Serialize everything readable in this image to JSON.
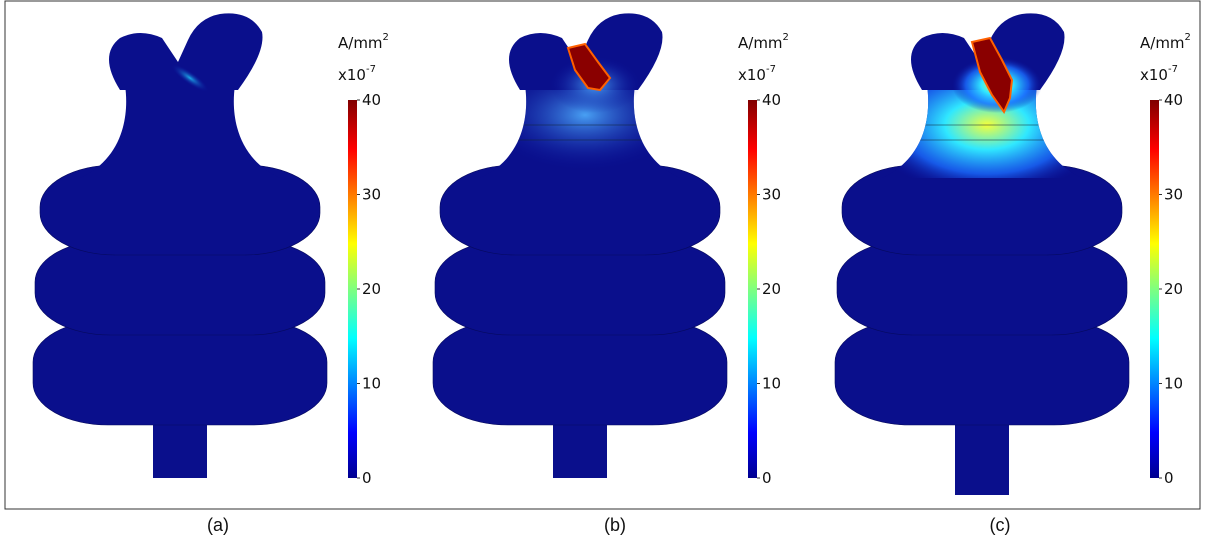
{
  "panels": [
    {
      "caption": "(a)",
      "unit": {
        "base": "A/mm",
        "exponent": "2"
      },
      "scale": {
        "base": "x10",
        "exponent": "-7"
      },
      "colorbar_ticks": [
        0,
        10,
        20,
        30,
        40
      ]
    },
    {
      "caption": "(b)",
      "unit": {
        "base": "A/mm",
        "exponent": "2"
      },
      "scale": {
        "base": "x10",
        "exponent": "-7"
      },
      "colorbar_ticks": [
        0,
        10,
        20,
        30,
        40
      ]
    },
    {
      "caption": "(c)",
      "unit": {
        "base": "A/mm",
        "exponent": "2"
      },
      "scale": {
        "base": "x10",
        "exponent": "-7"
      },
      "colorbar_ticks": [
        0,
        10,
        20,
        30,
        40
      ]
    }
  ]
}
